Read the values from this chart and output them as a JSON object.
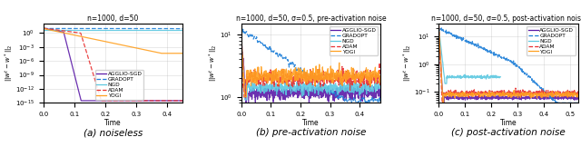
{
  "subplot_titles": [
    "n=1000, d=50",
    "n=1000, d=50, σ=0.5, pre-activation noise",
    "n=1000, d=50, σ=0.5, post-activation noise"
  ],
  "captions": [
    "(a) noiseless",
    "(b) pre-activation noise",
    "(c) post-activation noise"
  ],
  "xlabel": "Time",
  "ylabel": "$||w^t - w^*||_2$",
  "legend_labels": [
    "AGGLIO-SGD",
    "GRADOPT",
    "NGD",
    "ADAM",
    "YOGI"
  ],
  "colors": {
    "AGGLIO-SGD": "#5B1AA8",
    "GRADOPT": "#1E7FD8",
    "NGD": "#5CC8E0",
    "ADAM": "#E83030",
    "YOGI": "#FFA020"
  },
  "linestyles": {
    "AGGLIO-SGD": "-",
    "GRADOPT": "--",
    "NGD": "-",
    "ADAM": "--",
    "YOGI": "-"
  }
}
